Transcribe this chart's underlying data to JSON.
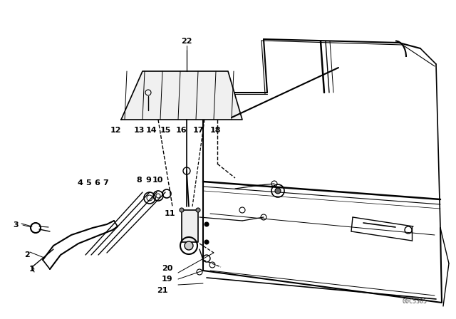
{
  "background_color": "#ffffff",
  "part_number_text": "00C5305",
  "figure_size": [
    6.4,
    4.48
  ],
  "dpi": 100,
  "line_color": "#000000",
  "label_fontsize": 8,
  "label_fontweight": "bold"
}
